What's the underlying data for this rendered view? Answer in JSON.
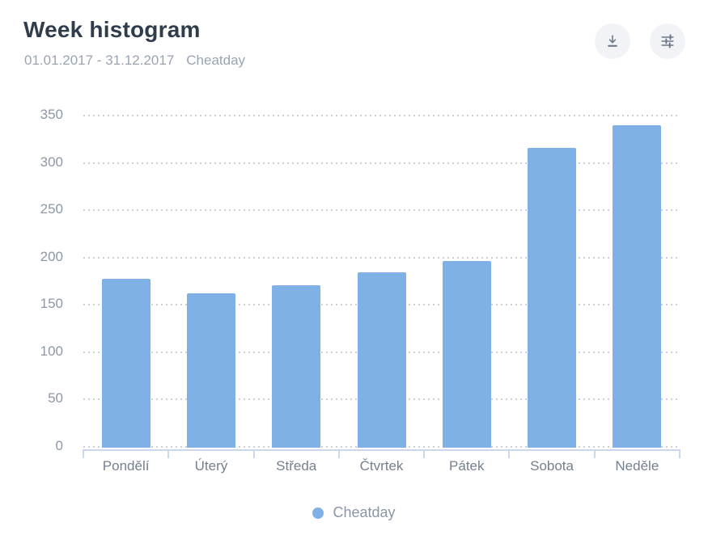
{
  "header": {
    "title": "Week histogram",
    "date_range": "01.01.2017 - 31.12.2017",
    "series_label": "Cheatday"
  },
  "toolbar": {
    "download_button": "download",
    "settings_button": "chart-settings"
  },
  "chart_data": {
    "type": "bar",
    "title": "Week histogram",
    "categories": [
      "Pondělí",
      "Úterý",
      "Středa",
      "Čtvrtek",
      "Pátek",
      "Sobota",
      "Neděle"
    ],
    "series": [
      {
        "name": "Cheatday",
        "values": [
          178,
          163,
          172,
          185,
          197,
          317,
          341
        ]
      }
    ],
    "xlabel": "",
    "ylabel": "",
    "ylim": [
      0,
      350
    ],
    "yticks": [
      0,
      50,
      100,
      150,
      200,
      250,
      300,
      350
    ],
    "grid": "horizontal-dotted",
    "legend_position": "bottom"
  },
  "legend": {
    "items": [
      {
        "label": "Cheatday",
        "color": "#7FB1E6"
      }
    ]
  },
  "theme": {
    "bar_color": "#7FB1E6",
    "title_color": "#2e3c4c",
    "subtitle_color": "#9aa4b1",
    "y_label_color": "#8d97a7",
    "x_label_color": "#75808e",
    "gridline_color": "#ccd0d6",
    "axis_line_color": "#ccd7ec",
    "icon_color": "#6d7888",
    "icon_button_bg": "#f1f3f7",
    "background": "#ffffff"
  }
}
